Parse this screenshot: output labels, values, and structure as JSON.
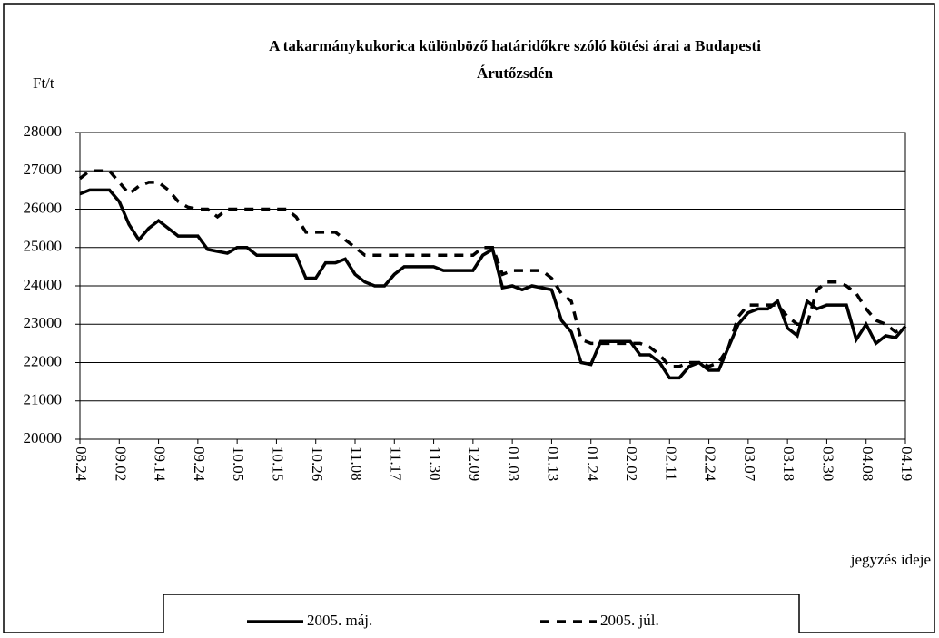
{
  "chart_data": {
    "type": "line",
    "title": [
      "A takarmánykukorica különböző határidőkre szóló kötési árai a Budapesti",
      "Árutőzsdén"
    ],
    "y_label": "Ft/t",
    "x_label": "jegyzés ideje",
    "categories": [
      "08.24",
      null,
      null,
      null,
      "09.02",
      null,
      null,
      null,
      "09.14",
      null,
      null,
      null,
      "09.24",
      null,
      null,
      null,
      "10.05",
      null,
      null,
      null,
      "10.15",
      null,
      null,
      null,
      "10.26",
      null,
      null,
      null,
      "11.08",
      null,
      null,
      null,
      "11.17",
      null,
      null,
      null,
      "11.30",
      null,
      null,
      null,
      "12.09",
      null,
      null,
      null,
      "01.03",
      null,
      null,
      null,
      "01.13",
      null,
      null,
      null,
      "01.24",
      null,
      null,
      null,
      "02.02",
      null,
      null,
      null,
      "02.11",
      null,
      null,
      null,
      "02.24",
      null,
      null,
      null,
      "03.07",
      null,
      null,
      null,
      "03.18",
      null,
      null,
      null,
      "03.30",
      null,
      null,
      null,
      "04.08",
      null,
      null,
      null,
      "04.19"
    ],
    "series": [
      {
        "name": "2005. máj.",
        "color": "#000000",
        "dash": "solid",
        "values": [
          26400,
          26500,
          26500,
          26500,
          26200,
          25600,
          25200,
          25500,
          25700,
          25500,
          25300,
          25300,
          25300,
          24950,
          24900,
          24850,
          25000,
          25000,
          24800,
          24800,
          24800,
          24800,
          24800,
          24200,
          24200,
          24600,
          24600,
          24700,
          24300,
          24100,
          24000,
          24000,
          24300,
          24500,
          24500,
          24500,
          24500,
          24400,
          24400,
          24400,
          24400,
          24800,
          24950,
          23950,
          24000,
          23900,
          24000,
          23950,
          23900,
          23100,
          22800,
          22000,
          21950,
          22550,
          22550,
          22550,
          22550,
          22200,
          22200,
          22000,
          21600,
          21600,
          21900,
          22000,
          21800,
          21800,
          22400,
          23000,
          23300,
          23400,
          23400,
          23600,
          22900,
          22700,
          23600,
          23400,
          23500,
          23500,
          23500,
          22600,
          23000,
          22500,
          22700,
          22650,
          22950
        ]
      },
      {
        "name": "2005. júl.",
        "color": "#000000",
        "dash": "dashed",
        "values": [
          26800,
          27000,
          27000,
          27000,
          26700,
          26400,
          26600,
          26700,
          26700,
          26500,
          26200,
          26050,
          26000,
          26000,
          25800,
          26000,
          26000,
          26000,
          26000,
          26000,
          26000,
          26000,
          25800,
          25400,
          25400,
          25400,
          25400,
          25200,
          25000,
          24800,
          24800,
          24800,
          24800,
          24800,
          24800,
          24800,
          24800,
          24800,
          24800,
          24800,
          24800,
          25000,
          25000,
          24300,
          24400,
          24400,
          24400,
          24400,
          24200,
          23800,
          23600,
          22600,
          22500,
          22500,
          22500,
          22500,
          22500,
          22500,
          22400,
          22200,
          21900,
          21900,
          22000,
          22000,
          21900,
          22000,
          22400,
          23200,
          23500,
          23500,
          23500,
          23500,
          23200,
          23000,
          23000,
          23900,
          24100,
          24100,
          24000,
          23800,
          23400,
          23100,
          23000,
          22800,
          22900
        ]
      }
    ],
    "ylim": [
      20000,
      28000
    ],
    "yticks": [
      20000,
      21000,
      22000,
      23000,
      24000,
      25000,
      26000,
      27000,
      28000
    ],
    "grid": true
  }
}
